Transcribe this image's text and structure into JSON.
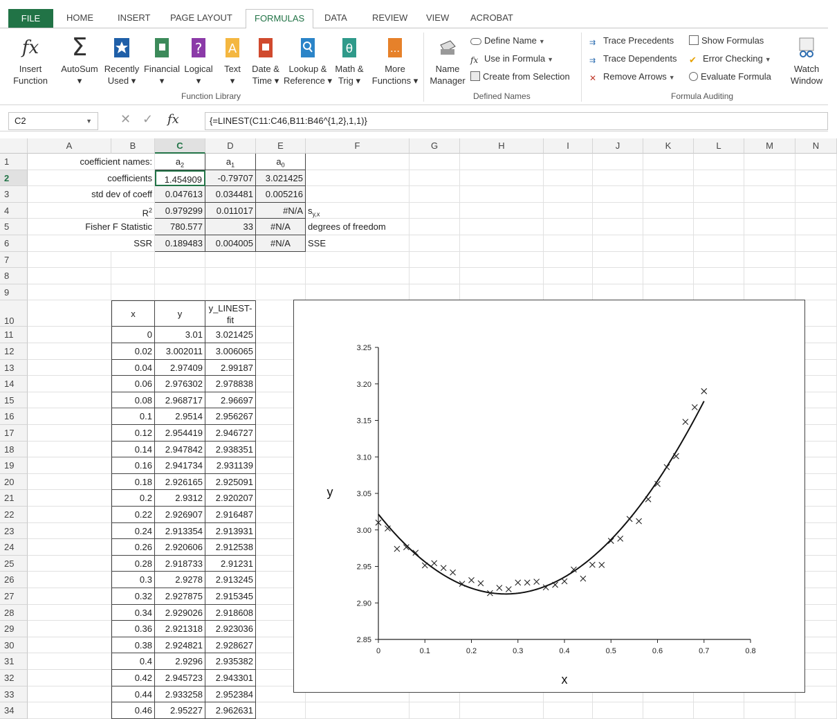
{
  "ribbon": {
    "tabs": [
      "FILE",
      "HOME",
      "INSERT",
      "PAGE LAYOUT",
      "FORMULAS",
      "DATA",
      "REVIEW",
      "VIEW",
      "ACROBAT"
    ],
    "active_tab": "FORMULAS",
    "function_library": {
      "label": "Function Library",
      "buttons": [
        {
          "l1": "Insert",
          "l2": "Function"
        },
        {
          "l1": "AutoSum",
          "l2": "▾"
        },
        {
          "l1": "Recently",
          "l2": "Used ▾"
        },
        {
          "l1": "Financial",
          "l2": "▾"
        },
        {
          "l1": "Logical",
          "l2": "▾"
        },
        {
          "l1": "Text",
          "l2": "▾"
        },
        {
          "l1": "Date &",
          "l2": "Time ▾"
        },
        {
          "l1": "Lookup &",
          "l2": "Reference ▾"
        },
        {
          "l1": "Math &",
          "l2": "Trig ▾"
        },
        {
          "l1": "More",
          "l2": "Functions ▾"
        }
      ]
    },
    "defined_names": {
      "label": "Defined Names",
      "name_manager_l1": "Name",
      "name_manager_l2": "Manager",
      "define_name": "Define Name",
      "use_in_formula": "Use in Formula",
      "create_from_selection": "Create from Selection"
    },
    "formula_auditing": {
      "label": "Formula Auditing",
      "trace_precedents": "Trace Precedents",
      "trace_dependents": "Trace Dependents",
      "remove_arrows": "Remove Arrows",
      "show_formulas": "Show Formulas",
      "error_checking": "Error Checking",
      "evaluate_formula": "Evaluate Formula",
      "watch_l1": "Watch",
      "watch_l2": "Window"
    }
  },
  "formula_bar": {
    "name_box": "C2",
    "formula": "{=LINEST(C11:C46,B11:B46^{1,2},1,1)}"
  },
  "columns": [
    "A",
    "B",
    "C",
    "D",
    "E",
    "F",
    "G",
    "H",
    "I",
    "J",
    "K",
    "L",
    "M",
    "N"
  ],
  "rows": [
    "1",
    "2",
    "3",
    "4",
    "5",
    "6",
    "7",
    "8",
    "9",
    "10",
    "11",
    "12",
    "13",
    "14",
    "15",
    "16",
    "17",
    "18",
    "19",
    "20",
    "21",
    "22",
    "23",
    "24",
    "25",
    "26",
    "27",
    "28",
    "29",
    "30",
    "31",
    "32",
    "33",
    "34"
  ],
  "summary": {
    "row1": {
      "label": "coefficient names:",
      "c": "a2",
      "d": "a1",
      "e": "a0"
    },
    "row2": {
      "label": "coefficients",
      "c": "1.454909",
      "d": "-0.79707",
      "e": "3.021425"
    },
    "row3": {
      "label": "std dev of coeff",
      "c": "0.047613",
      "d": "0.034481",
      "e": "0.005216"
    },
    "row4": {
      "label": "R",
      "c": "0.979299",
      "d": "0.011017",
      "e": "#N/A",
      "f": "s"
    },
    "row5": {
      "label": "Fisher F Statistic",
      "c": "780.577",
      "d": "33",
      "e": "#N/A",
      "f": "degrees of freedom"
    },
    "row6": {
      "label": "SSR",
      "c": "0.189483",
      "d": "0.004005",
      "e": "#N/A",
      "f": "SSE"
    }
  },
  "table": {
    "headers": [
      "x",
      "y",
      "y_LINEST-fit"
    ],
    "rows": [
      [
        "0",
        "3.01",
        "3.021425"
      ],
      [
        "0.02",
        "3.002011",
        "3.006065"
      ],
      [
        "0.04",
        "2.97409",
        "2.99187"
      ],
      [
        "0.06",
        "2.976302",
        "2.978838"
      ],
      [
        "0.08",
        "2.968717",
        "2.96697"
      ],
      [
        "0.1",
        "2.9514",
        "2.956267"
      ],
      [
        "0.12",
        "2.954419",
        "2.946727"
      ],
      [
        "0.14",
        "2.947842",
        "2.938351"
      ],
      [
        "0.16",
        "2.941734",
        "2.931139"
      ],
      [
        "0.18",
        "2.926165",
        "2.925091"
      ],
      [
        "0.2",
        "2.9312",
        "2.920207"
      ],
      [
        "0.22",
        "2.926907",
        "2.916487"
      ],
      [
        "0.24",
        "2.913354",
        "2.913931"
      ],
      [
        "0.26",
        "2.920606",
        "2.912538"
      ],
      [
        "0.28",
        "2.918733",
        "2.91231"
      ],
      [
        "0.3",
        "2.9278",
        "2.913245"
      ],
      [
        "0.32",
        "2.927875",
        "2.915345"
      ],
      [
        "0.34",
        "2.929026",
        "2.918608"
      ],
      [
        "0.36",
        "2.921318",
        "2.923036"
      ],
      [
        "0.38",
        "2.924821",
        "2.928627"
      ],
      [
        "0.4",
        "2.9296",
        "2.935382"
      ],
      [
        "0.42",
        "2.945723",
        "2.943301"
      ],
      [
        "0.44",
        "2.933258",
        "2.952384"
      ],
      [
        "0.46",
        "2.95227",
        "2.962631"
      ]
    ]
  },
  "chart_data": {
    "type": "scatter",
    "title": "",
    "xlabel": "x",
    "ylabel": "y",
    "xlim": [
      0,
      0.8
    ],
    "ylim": [
      2.85,
      3.25
    ],
    "xticks": [
      "0",
      "0.1",
      "0.2",
      "0.3",
      "0.4",
      "0.5",
      "0.6",
      "0.7",
      "0.8"
    ],
    "yticks": [
      "2.85",
      "2.90",
      "2.95",
      "3.00",
      "3.05",
      "3.10",
      "3.15",
      "3.20",
      "3.25"
    ],
    "series": [
      {
        "marker": "x",
        "x": [
          0,
          0.02,
          0.04,
          0.06,
          0.08,
          0.1,
          0.12,
          0.14,
          0.16,
          0.18,
          0.2,
          0.22,
          0.24,
          0.26,
          0.28,
          0.3,
          0.32,
          0.34,
          0.36,
          0.38,
          0.4,
          0.42,
          0.44,
          0.46,
          0.48,
          0.5,
          0.52,
          0.54,
          0.56,
          0.58,
          0.6,
          0.62,
          0.64,
          0.66,
          0.68,
          0.7
        ],
        "y": [
          3.01,
          3.002011,
          2.97409,
          2.976302,
          2.968717,
          2.9514,
          2.954419,
          2.947842,
          2.941734,
          2.926165,
          2.9312,
          2.926907,
          2.913354,
          2.920606,
          2.918733,
          2.9278,
          2.927875,
          2.929026,
          2.921318,
          2.924821,
          2.9296,
          2.945723,
          2.933258,
          2.95227,
          2.952,
          2.985,
          2.988,
          3.015,
          3.012,
          3.042,
          3.063,
          3.086,
          3.101,
          3.148,
          3.168,
          3.19
        ]
      },
      {
        "style": "line",
        "fit": {
          "a2": 1.454909,
          "a1": -0.79707,
          "a0": 3.021425
        }
      }
    ]
  }
}
